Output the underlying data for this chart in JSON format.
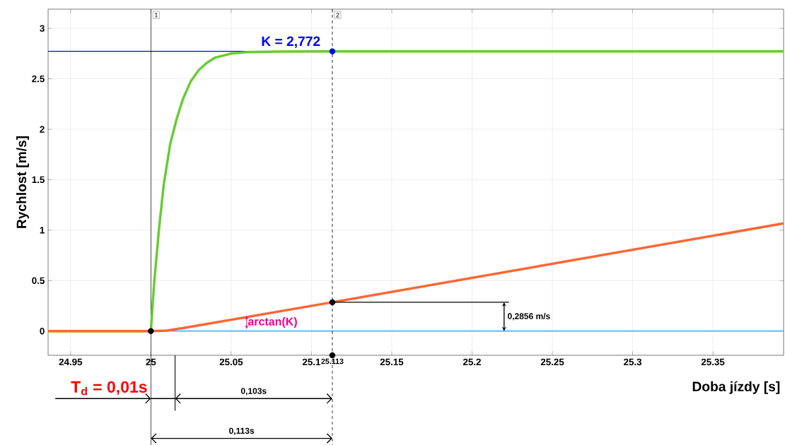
{
  "chart_data": {
    "type": "line",
    "xlabel": "Doba jízdy [s]",
    "ylabel": "Rychlost [m/s]",
    "xlim": [
      24.936,
      25.394
    ],
    "ylim": [
      -0.24,
      3.19
    ],
    "xticks": [
      24.95,
      25,
      25.05,
      25.1,
      25.113,
      25.15,
      25.2,
      25.25,
      25.3,
      25.35
    ],
    "yticks": [
      0,
      0.5,
      1,
      1.5,
      2,
      2.5,
      3
    ],
    "grid": true,
    "series": [
      {
        "color": "#66cc33",
        "x": [
          24.936,
          25,
          25.002,
          25.005,
          25.008,
          25.012,
          25.016,
          25.02,
          25.025,
          25.03,
          25.035,
          25.04,
          25.05,
          25.06,
          25.08,
          25.113,
          25.394
        ],
        "values": [
          0,
          0,
          0.47,
          1.0,
          1.45,
          1.85,
          2.1,
          2.3,
          2.48,
          2.59,
          2.66,
          2.71,
          2.75,
          2.765,
          2.77,
          2.772,
          2.772
        ]
      },
      {
        "color": "#ff6633",
        "x": [
          24.936,
          25,
          25.01,
          25.02,
          25.113,
          25.394
        ],
        "values": [
          0,
          0,
          0.005,
          0.03,
          0.2856,
          1.067
        ]
      },
      {
        "type": "scatter",
        "marker": "circle",
        "color": "#000000",
        "x": [
          25,
          25.113,
          25.113
        ],
        "values": [
          0,
          0.2856,
          -0.24
        ]
      },
      {
        "type": "scatter",
        "marker": "circle",
        "color": "#0000ff",
        "x": [
          25.113
        ],
        "values": [
          2.772
        ]
      }
    ],
    "ref_lines": [
      {
        "axis": "y",
        "value": 0,
        "color": "#2196f3"
      },
      {
        "axis": "y",
        "value": 2.772,
        "label": "K = 2,772",
        "color": "#0000ff"
      },
      {
        "axis": "x",
        "value": 25,
        "color": "#000000"
      },
      {
        "axis": "x",
        "value": 25.113,
        "color": "#000000",
        "line_style": "dashed"
      }
    ],
    "annotations": [
      "1",
      "2",
      "arctan(K)",
      {
        "text": "0,2856 m/s",
        "x": 25.113,
        "y": 0.2856
      },
      "T$_{d}$ = 0,01s",
      "0,103s",
      "0,113s"
    ]
  }
}
